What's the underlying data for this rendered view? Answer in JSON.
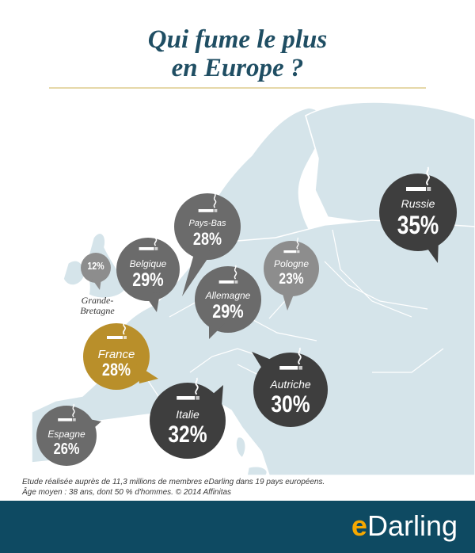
{
  "title": {
    "line1": "Qui fume le plus",
    "line2": "en Europe ?"
  },
  "colors": {
    "dark": "#3e3e3e",
    "mid": "#6b6b6b",
    "light": "#8d8d8d",
    "france": "#b98f2a",
    "sea": "#ffffff",
    "land": "#d5e4ea",
    "border": "#ffffff",
    "footer": "#0e4a62",
    "brand_accent": "#f6a800"
  },
  "icon": "cigarette-smoke-icon",
  "countries": [
    {
      "id": "russie",
      "label": "Russie",
      "value": "35%",
      "tone": "dark"
    },
    {
      "id": "pays-bas",
      "label": "Pays-Bas",
      "value": "28%",
      "tone": "mid"
    },
    {
      "id": "belgique",
      "label": "Belgique",
      "value": "29%",
      "tone": "mid"
    },
    {
      "id": "grande-bretagne",
      "label": "",
      "value": "12%",
      "tone": "light"
    },
    {
      "id": "pologne",
      "label": "Pologne",
      "value": "23%",
      "tone": "light"
    },
    {
      "id": "allemagne",
      "label": "Allemagne",
      "value": "29%",
      "tone": "mid"
    },
    {
      "id": "france",
      "label": "France",
      "value": "28%",
      "tone": "france"
    },
    {
      "id": "autriche",
      "label": "Autriche",
      "value": "30%",
      "tone": "dark"
    },
    {
      "id": "italie",
      "label": "Italie",
      "value": "32%",
      "tone": "dark"
    },
    {
      "id": "espagne",
      "label": "Espagne",
      "value": "26%",
      "tone": "mid"
    }
  ],
  "uk_label": {
    "line1": "Grande-",
    "line2": "Bretagne"
  },
  "footnote": {
    "line1": "Etude réalisée auprès de 11,3 millions de membres eDarling dans 19 pays européens.",
    "line2": "Âge moyen : 38 ans, dont 50 % d'hommes. © 2014 Affinitas"
  },
  "brand": {
    "prefix": "e",
    "rest": "Darling"
  }
}
